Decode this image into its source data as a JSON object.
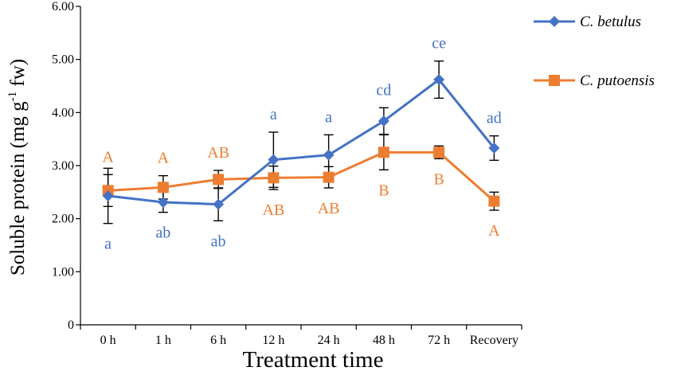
{
  "chart_data": {
    "type": "line",
    "xlabel": "Treatment time",
    "ylabel": {
      "main": "Soluble protein (mg g",
      "sup": "-1",
      "tail": " fw)"
    },
    "categories": [
      "0 h",
      "1 h",
      "6 h",
      "12 h",
      "24 h",
      "48 h",
      "72 h",
      "Recovery"
    ],
    "ylim": [
      0,
      6
    ],
    "yticks": [
      "0",
      "1.00",
      "2.00",
      "3.00",
      "4.00",
      "5.00",
      "6.00"
    ],
    "grid": false,
    "legend_position": "top-right",
    "series": [
      {
        "name": "C. betulus",
        "color": "#4472C4",
        "marker": "diamond",
        "values": [
          2.43,
          2.31,
          2.27,
          3.11,
          3.2,
          3.84,
          4.62,
          3.33
        ],
        "errors": [
          0.52,
          0.19,
          0.31,
          0.52,
          0.38,
          0.25,
          0.35,
          0.23
        ],
        "letters": [
          "a",
          "ab",
          "ab",
          "a",
          "a",
          "cd",
          "ce",
          "ad"
        ],
        "letter_position": [
          "below",
          "below",
          "below",
          "above",
          "above",
          "above",
          "above",
          "above"
        ],
        "letter_color": "#4472C4"
      },
      {
        "name": "C. putoensis",
        "color": "#ED7D31",
        "marker": "square",
        "values": [
          2.53,
          2.59,
          2.74,
          2.77,
          2.78,
          3.25,
          3.25,
          2.33
        ],
        "errors": [
          0.3,
          0.22,
          0.17,
          0.22,
          0.2,
          0.33,
          0.12,
          0.17
        ],
        "letters": [
          "A",
          "A",
          "AB",
          "AB",
          "AB",
          "B",
          "B",
          "A"
        ],
        "letter_position": [
          "above",
          "above",
          "above",
          "below",
          "below",
          "below",
          "below",
          "below"
        ],
        "letter_color": "#ED7D31"
      }
    ]
  }
}
